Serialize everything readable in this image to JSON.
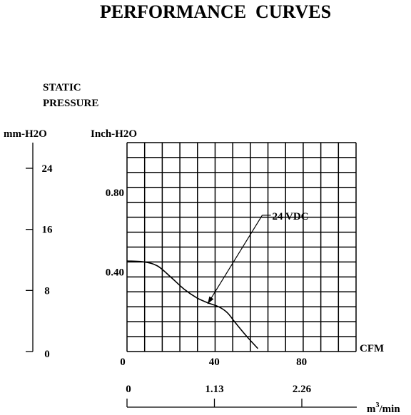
{
  "chart_data": {
    "type": "line",
    "title": "PERFORMANCE  CURVES",
    "ylabel_lines": [
      "STATIC",
      "PRESSURE"
    ],
    "y_unit_mm": "mm-H2O",
    "y_unit_inch": "Inch-H2O",
    "xlabel_cfm": "CFM",
    "xlabel_m3_base": "m",
    "xlabel_m3_sup": "3",
    "xlabel_m3_rest": "/min",
    "xlim": [
      0,
      105
    ],
    "ylim": [
      0,
      1.05
    ],
    "grid": true,
    "grid_cols": 13,
    "grid_rows": 14,
    "inch_ticks": [
      {
        "value": 0.4,
        "label": "0.40"
      },
      {
        "value": 0.8,
        "label": "0.80"
      }
    ],
    "cfm_ticks": [
      {
        "value": 0,
        "label": "0"
      },
      {
        "value": 40,
        "label": "40"
      },
      {
        "value": 80,
        "label": "80"
      }
    ],
    "mm_ticks": [
      {
        "value": 0,
        "label": "0"
      },
      {
        "value": 8,
        "label": "8"
      },
      {
        "value": 16,
        "label": "16"
      },
      {
        "value": 24,
        "label": "24"
      }
    ],
    "m3_ticks": [
      {
        "value": 0,
        "label": "0"
      },
      {
        "value": 1.13,
        "label": "1.13"
      },
      {
        "value": 2.26,
        "label": "2.26"
      }
    ],
    "series": [
      {
        "name": "24 VDC",
        "points": [
          [
            0,
            0.455
          ],
          [
            8,
            0.45
          ],
          [
            14,
            0.43
          ],
          [
            20,
            0.375
          ],
          [
            26,
            0.315
          ],
          [
            32,
            0.27
          ],
          [
            37,
            0.245
          ],
          [
            42,
            0.225
          ],
          [
            46,
            0.195
          ],
          [
            50,
            0.14
          ],
          [
            55,
            0.075
          ],
          [
            60,
            0.015
          ]
        ]
      }
    ],
    "annotation": {
      "text": "24 VDC",
      "label_at": [
        62,
        0.685
      ],
      "arrow_to": [
        37,
        0.24
      ]
    }
  }
}
